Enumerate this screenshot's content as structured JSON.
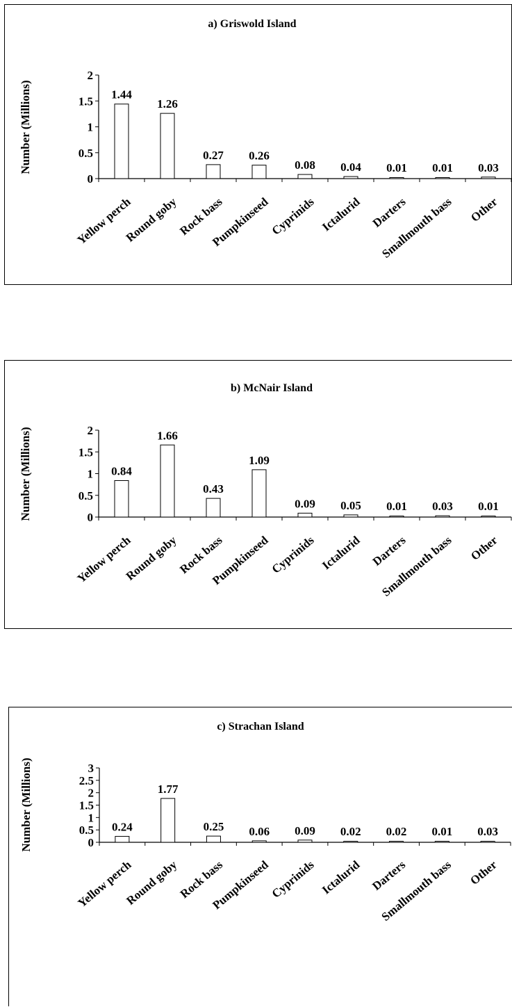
{
  "chart_data": [
    {
      "type": "bar",
      "title": "a)  Griswold Island",
      "ylabel": "Number (Millions)",
      "xlabel": "",
      "categories": [
        "Yellow perch",
        "Round goby",
        "Rock bass",
        "Pumpkinseed",
        "Cyprinids",
        "Ictalurid",
        "Darters",
        "Smallmouth bass",
        "Other"
      ],
      "values": [
        1.44,
        1.26,
        0.27,
        0.26,
        0.08,
        0.04,
        0.01,
        0.01,
        0.03
      ],
      "data_labels": [
        "1.44",
        "1.26",
        "0.27",
        "0.26",
        "0.08",
        "0.04",
        "0.01",
        "0.01",
        "0.03"
      ],
      "ylim": [
        0,
        2
      ],
      "yticks": [
        "0",
        "0.5",
        "1",
        "1.5",
        "2"
      ],
      "grid": false,
      "bar_fill": "#ffffff",
      "bar_stroke": "#000000"
    },
    {
      "type": "bar",
      "title": "b)  McNair Island",
      "ylabel": "Number (Millions)",
      "xlabel": "",
      "categories": [
        "Yellow perch",
        "Round goby",
        "Rock bass",
        "Pumpkinseed",
        "Cyprinids",
        "Ictalurid",
        "Darters",
        "Smallmouth bass",
        "Other"
      ],
      "values": [
        0.84,
        1.66,
        0.43,
        1.09,
        0.09,
        0.05,
        0.01,
        0.03,
        0.01
      ],
      "data_labels": [
        "0.84",
        "1.66",
        "0.43",
        "1.09",
        "0.09",
        "0.05",
        "0.01",
        "0.03",
        "0.01"
      ],
      "ylim": [
        0,
        2
      ],
      "yticks": [
        "0",
        "0.5",
        "1",
        "1.5",
        "2"
      ],
      "grid": false,
      "bar_fill": "#ffffff",
      "bar_stroke": "#000000"
    },
    {
      "type": "bar",
      "title": "c) Strachan Island",
      "ylabel": "Number (Millions)",
      "xlabel": "",
      "categories": [
        "Yellow perch",
        "Round goby",
        "Rock bass",
        "Pumpkinseed",
        "Cyprinids",
        "Ictalurid",
        "Darters",
        "Smallmouth bass",
        "Other"
      ],
      "values": [
        0.24,
        1.77,
        0.25,
        0.06,
        0.09,
        0.02,
        0.02,
        0.01,
        0.03
      ],
      "data_labels": [
        "0.24",
        "1.77",
        "0.25",
        "0.06",
        "0.09",
        "0.02",
        "0.02",
        "0.01",
        "0.03"
      ],
      "ylim": [
        0,
        3
      ],
      "yticks": [
        "0",
        "0.5",
        "1",
        "1.5",
        "2",
        "2.5",
        "3"
      ],
      "grid": false,
      "bar_fill": "#ffffff",
      "bar_stroke": "#000000"
    }
  ]
}
